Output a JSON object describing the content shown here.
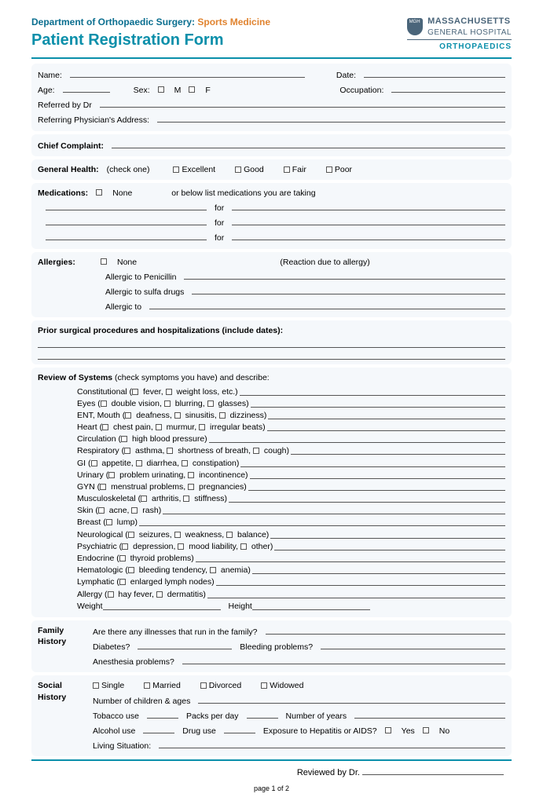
{
  "header": {
    "dept_prefix": "Department of Orthopaedic Surgery:",
    "dept_suffix": "Sports Medicine",
    "title": "Patient Registration Form",
    "logo_shield": "MGH",
    "logo_line1": "MASSACHUSETTS",
    "logo_line2": "GENERAL HOSPITAL",
    "logo_line3": "ORTHOPAEDICS"
  },
  "basic": {
    "name": "Name:",
    "date": "Date:",
    "age": "Age:",
    "sex": "Sex:",
    "m": "M",
    "f": "F",
    "occ": "Occupation:",
    "ref_by": "Referred by Dr",
    "ref_addr": "Referring Physician's Address:"
  },
  "chief": {
    "label": "Chief Complaint:"
  },
  "health": {
    "label": "General Health:",
    "hint": "(check one)",
    "opts": [
      "Excellent",
      "Good",
      "Fair",
      "Poor"
    ]
  },
  "meds": {
    "label": "Medications:",
    "none": "None",
    "desc": "or below list medications you are taking",
    "for": "for"
  },
  "allergies": {
    "label": "Allergies:",
    "none": "None",
    "react": "(Reaction due to allergy)",
    "pen": "Allergic to Penicillin",
    "sulfa": "Allergic to sulfa drugs",
    "other": "Allergic to"
  },
  "prior": {
    "label": "Prior surgical procedures and hospitalizations (include dates):"
  },
  "ros": {
    "title_a": "Review of Systems",
    "title_b": " (check symptoms you have) and describe:",
    "items": [
      {
        "label": "Constitutional (",
        "opts": [
          "fever,",
          "weight loss, etc.)"
        ]
      },
      {
        "label": "Eyes (",
        "opts": [
          "double vision,",
          "blurring,",
          "glasses)"
        ]
      },
      {
        "label": "ENT, Mouth (",
        "opts": [
          "deafness,",
          "sinusitis,",
          "dizziness)"
        ]
      },
      {
        "label": "Heart (",
        "opts": [
          "chest pain,",
          "murmur,",
          "irregular beats)"
        ]
      },
      {
        "label": "Circulation (",
        "opts": [
          "high blood pressure)"
        ]
      },
      {
        "label": "Respiratory (",
        "opts": [
          "asthma,",
          "shortness of breath,",
          "cough)"
        ]
      },
      {
        "label": "GI (",
        "opts": [
          "appetite,",
          "diarrhea,",
          "constipation)"
        ]
      },
      {
        "label": "Urinary (",
        "opts": [
          "problem urinating,",
          "incontinence)"
        ]
      },
      {
        "label": "GYN (",
        "opts": [
          "menstrual problems,",
          "pregnancies)"
        ]
      },
      {
        "label": "Musculoskeletal (",
        "opts": [
          "arthritis,",
          "stiffness)"
        ]
      },
      {
        "label": "Skin (",
        "opts": [
          "acne,",
          "rash)"
        ]
      },
      {
        "label": "Breast (",
        "opts": [
          "lump)"
        ]
      },
      {
        "label": "Neurological (",
        "opts": [
          "seizures,",
          "weakness,",
          "balance)"
        ]
      },
      {
        "label": "Psychiatric (",
        "opts": [
          "depression,",
          "mood liability,",
          "other)"
        ]
      },
      {
        "label": "Endocrine (",
        "opts": [
          "thyroid problems)"
        ]
      },
      {
        "label": "Hematologic (",
        "opts": [
          "bleeding tendency,",
          "anemia)"
        ]
      },
      {
        "label": "Lymphatic (",
        "opts": [
          "enlarged lymph nodes)"
        ]
      },
      {
        "label": "Allergy (",
        "opts": [
          "hay fever,",
          "dermatitis)"
        ]
      }
    ],
    "weight": "Weight",
    "height": "Height"
  },
  "family": {
    "label1": "Family",
    "label2": "History",
    "q1": "Are there any illnesses that run in the family?",
    "q2": "Diabetes?",
    "q3": "Bleeding problems?",
    "q4": "Anesthesia problems?"
  },
  "social": {
    "label1": "Social",
    "label2": "History",
    "marital": [
      "Single",
      "Married",
      "Divorced",
      "Widowed"
    ],
    "children": "Number of children & ages",
    "tobacco": "Tobacco use",
    "packs": "Packs per day",
    "years": "Number of years",
    "alcohol": "Alcohol use",
    "drug": "Drug use",
    "hepaids": "Exposure to Hepatitis or AIDS?",
    "yes": "Yes",
    "no": "No",
    "living": "Living Situation:"
  },
  "reviewed": "Reviewed by Dr.",
  "pagenum": "page 1 of 2"
}
